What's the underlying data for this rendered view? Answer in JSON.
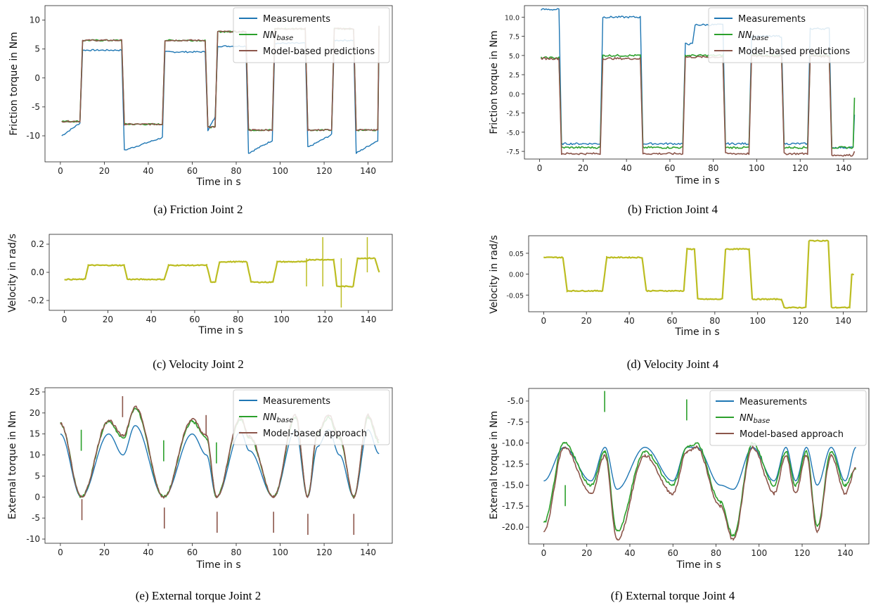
{
  "colors": {
    "measurements": "#1f77b4",
    "nn_base": "#2ca02c",
    "model": "#8c564b",
    "velocity": "#bcbd22"
  },
  "chart_data": [
    {
      "id": "a",
      "type": "line",
      "caption": "(a) Friction Joint 2",
      "xlabel": "Time in s",
      "ylabel": "Friction torque in Nm",
      "xlim": [
        -7,
        151
      ],
      "ylim": [
        -14.5,
        12.5
      ],
      "xticks": [
        "0",
        "20",
        "40",
        "60",
        "80",
        "100",
        "120",
        "140"
      ],
      "yticks": [
        "10",
        "5",
        "0",
        "-5",
        "-10"
      ],
      "legend": {
        "position": "top-right",
        "entries": [
          "Measurements",
          "NNbase",
          "Model-based predictions"
        ]
      },
      "x_breaks": [
        0,
        9.5,
        28.5,
        47,
        66.5,
        71,
        85,
        97,
        112,
        124,
        134,
        145
      ],
      "series": [
        {
          "name": "Measurements",
          "color": "#1f77b4",
          "values": [
            -10,
            4.8,
            -12.5,
            4.5,
            -9,
            5.5,
            -13,
            6,
            -12,
            6.5,
            -13,
            6.5
          ]
        },
        {
          "name": "NNbase",
          "color": "#2ca02c",
          "values": [
            -7.5,
            6.5,
            -8,
            6.5,
            -8.5,
            8,
            -9,
            8.5,
            -9,
            8.5,
            -9,
            9
          ]
        },
        {
          "name": "Model-based predictions",
          "color": "#8c564b",
          "values": [
            -7.5,
            6.5,
            -8,
            6.5,
            -8.5,
            8,
            -9,
            8.5,
            -9,
            8.5,
            -9,
            9
          ]
        }
      ]
    },
    {
      "id": "b",
      "type": "line",
      "caption": "(b) Friction Joint 4",
      "xlabel": "Time in s",
      "ylabel": "Friction torque in Nm",
      "xlim": [
        -7,
        151
      ],
      "ylim": [
        -8.5,
        11.5
      ],
      "xticks": [
        "0",
        "20",
        "40",
        "60",
        "80",
        "100",
        "120",
        "140"
      ],
      "yticks": [
        "10.0",
        "7.5",
        "5.0",
        "2.5",
        "0.0",
        "-2.5",
        "-5.0",
        "-7.5"
      ],
      "legend": {
        "position": "top-right",
        "entries": [
          "Measurements",
          "NNbase",
          "Model-based predictions"
        ]
      },
      "x_breaks": [
        0,
        9.5,
        28.5,
        47,
        66.5,
        71,
        85,
        97,
        112,
        124,
        134,
        145
      ],
      "series": [
        {
          "name": "Measurements",
          "color": "#1f77b4",
          "values": [
            11,
            -6.5,
            10,
            -6.5,
            6.5,
            9,
            -6.5,
            7.5,
            -6.5,
            8.5,
            -7,
            -2.7
          ]
        },
        {
          "name": "NNbase",
          "color": "#2ca02c",
          "values": [
            4.7,
            -7,
            5,
            -7,
            5,
            5,
            -7,
            5,
            -7,
            5,
            -7,
            -0.5
          ]
        },
        {
          "name": "Model-based predictions",
          "color": "#8c564b",
          "values": [
            4.6,
            -7.8,
            4.6,
            -7.8,
            4.8,
            4.8,
            -7.8,
            4.9,
            -7.8,
            4.9,
            -8,
            -7.5
          ]
        }
      ]
    },
    {
      "id": "c",
      "type": "line",
      "caption": "(c) Velocity Joint 2",
      "xlabel": "Time in s",
      "ylabel": "Velocity in rad/s",
      "xlim": [
        -7,
        151
      ],
      "ylim": [
        -0.27,
        0.27
      ],
      "xticks": [
        "0",
        "20",
        "40",
        "60",
        "80",
        "100",
        "120",
        "140"
      ],
      "yticks": [
        "0.2",
        "0.0",
        "-0.2"
      ],
      "segments": [
        [
          0,
          -0.05
        ],
        [
          9.5,
          -0.05
        ],
        [
          11,
          0.05
        ],
        [
          27.5,
          0.05
        ],
        [
          29,
          -0.05
        ],
        [
          46,
          -0.05
        ],
        [
          48,
          0.05
        ],
        [
          65.5,
          0.05
        ],
        [
          67.5,
          -0.07
        ],
        [
          69.5,
          -0.07
        ],
        [
          71.5,
          0.075
        ],
        [
          84,
          0.075
        ],
        [
          86,
          -0.07
        ],
        [
          96,
          -0.07
        ],
        [
          98,
          0.075
        ],
        [
          111,
          0.075
        ],
        [
          112.5,
          0.09
        ],
        [
          124,
          0.09
        ],
        [
          125.5,
          -0.1
        ],
        [
          133,
          -0.1
        ],
        [
          135,
          0.1
        ],
        [
          143,
          0.1
        ],
        [
          145,
          0
        ]
      ],
      "series": [
        {
          "name": "",
          "color": "#bcbd22"
        }
      ]
    },
    {
      "id": "d",
      "type": "line",
      "caption": "(d) Velocity Joint 4",
      "xlabel": "Time in s",
      "ylabel": "Velocity in rad/s",
      "xlim": [
        -7,
        151
      ],
      "ylim": [
        -0.09,
        0.092
      ],
      "xticks": [
        "0",
        "20",
        "40",
        "60",
        "80",
        "100",
        "120",
        "140"
      ],
      "yticks": [
        "0.05",
        "0.00",
        "-0.05"
      ],
      "segments": [
        [
          0,
          0.04
        ],
        [
          9,
          0.04
        ],
        [
          11,
          -0.04
        ],
        [
          27.5,
          -0.04
        ],
        [
          29.5,
          0.04
        ],
        [
          46,
          0.04
        ],
        [
          48,
          -0.04
        ],
        [
          65.5,
          -0.04
        ],
        [
          67,
          0.06
        ],
        [
          70.5,
          0.06
        ],
        [
          72,
          -0.06
        ],
        [
          83.5,
          -0.06
        ],
        [
          85,
          0.06
        ],
        [
          96,
          0.06
        ],
        [
          97.5,
          -0.06
        ],
        [
          111,
          -0.06
        ],
        [
          112.5,
          -0.08
        ],
        [
          122.5,
          -0.08
        ],
        [
          124,
          0.08
        ],
        [
          133,
          0.08
        ],
        [
          134.5,
          -0.08
        ],
        [
          143,
          -0.08
        ],
        [
          144,
          0
        ],
        [
          145,
          0
        ]
      ],
      "series": [
        {
          "name": "",
          "color": "#bcbd22"
        }
      ]
    },
    {
      "id": "e",
      "type": "line",
      "caption": "(e) External torque Joint 2",
      "xlabel": "Time in s",
      "ylabel": "External torque in Nm",
      "xlim": [
        -7,
        151
      ],
      "ylim": [
        -11,
        26
      ],
      "xticks": [
        "0",
        "20",
        "40",
        "60",
        "80",
        "100",
        "120",
        "140"
      ],
      "yticks": [
        "25",
        "20",
        "15",
        "10",
        "5",
        "0",
        "-5",
        "-10"
      ],
      "legend": {
        "position": "top-right",
        "entries": [
          "Measurements",
          "NNbase",
          "Model-based approach"
        ]
      },
      "x_knots": [
        0,
        9.5,
        22,
        28.5,
        34,
        47,
        60,
        66.5,
        71,
        82,
        86,
        97,
        107,
        112.5,
        117,
        122,
        127,
        133.5,
        140,
        145
      ],
      "series": [
        {
          "name": "Measurements",
          "color": "#1f77b4",
          "values": [
            15,
            0,
            15,
            10,
            17,
            0,
            15,
            10,
            0,
            15.5,
            11,
            0,
            16,
            0,
            12,
            16,
            10,
            0,
            16,
            10.3
          ]
        },
        {
          "name": "NNbase",
          "color": "#2ca02c",
          "values": [
            17.5,
            0,
            18,
            14,
            21,
            0,
            18,
            14,
            0,
            18.5,
            14,
            0,
            19,
            0,
            15,
            19,
            14,
            0,
            19,
            13
          ]
        },
        {
          "name": "Model-based approach",
          "color": "#8c564b",
          "values": [
            17.5,
            0,
            18.3,
            14.5,
            21.5,
            0,
            18.5,
            14.5,
            0,
            19,
            14.5,
            0,
            19.5,
            0,
            15.5,
            19.5,
            14.5,
            0,
            19.5,
            13.5
          ]
        }
      ],
      "spikes": [
        {
          "x": 9.5,
          "y": 11,
          "color": "#2ca02c"
        },
        {
          "x": 9.8,
          "y": -5.5,
          "color": "#8c564b"
        },
        {
          "x": 28.3,
          "y": 24,
          "color": "#8c564b"
        },
        {
          "x": 47,
          "y": 8.5,
          "color": "#2ca02c"
        },
        {
          "x": 47.3,
          "y": -7.5,
          "color": "#8c564b"
        },
        {
          "x": 66.3,
          "y": 19.5,
          "color": "#8c564b"
        },
        {
          "x": 71,
          "y": 8,
          "color": "#2ca02c"
        },
        {
          "x": 71.3,
          "y": -8.5,
          "color": "#8c564b"
        },
        {
          "x": 97,
          "y": -8.5,
          "color": "#8c564b"
        },
        {
          "x": 112.6,
          "y": -9,
          "color": "#8c564b"
        },
        {
          "x": 133.5,
          "y": -9,
          "color": "#8c564b"
        }
      ]
    },
    {
      "id": "f",
      "type": "line",
      "caption": "(f) External torque Joint 4",
      "xlabel": "Time in s",
      "ylabel": "External torque in Nm",
      "xlim": [
        -7,
        151
      ],
      "ylim": [
        -22,
        -3.5
      ],
      "xticks": [
        "0",
        "20",
        "40",
        "60",
        "80",
        "100",
        "120",
        "140"
      ],
      "yticks": [
        "-5.0",
        "-7.5",
        "-10.0",
        "-12.5",
        "-15.0",
        "-17.5",
        "-20.0"
      ],
      "legend": {
        "position": "top-right",
        "entries": [
          "Measurements",
          "NNbase",
          "Model-based approach"
        ]
      },
      "x_knots": [
        0,
        9.5,
        22,
        28.5,
        34,
        47,
        60,
        66.5,
        71,
        82,
        88,
        97,
        107,
        112.5,
        117,
        122,
        127,
        133.5,
        140,
        145
      ],
      "series": [
        {
          "name": "Measurements",
          "color": "#1f77b4",
          "values": [
            -14.5,
            -10.5,
            -14.5,
            -10.5,
            -15.5,
            -10.5,
            -14.5,
            -10.5,
            -10.5,
            -15,
            -15.5,
            -10.5,
            -14.5,
            -10.5,
            -14.5,
            -10.5,
            -15,
            -10.5,
            -14.5,
            -10.5
          ]
        },
        {
          "name": "NNbase",
          "color": "#2ca02c",
          "values": [
            -19.5,
            -10,
            -15,
            -11,
            -20.5,
            -11,
            -15,
            -10.5,
            -10,
            -17,
            -21,
            -10,
            -15,
            -11,
            -15,
            -11,
            -20,
            -11,
            -15,
            -13
          ]
        },
        {
          "name": "Model-based approach",
          "color": "#8c564b",
          "values": [
            -20.5,
            -10.5,
            -16,
            -11.5,
            -21.5,
            -11.5,
            -16,
            -11,
            -10.5,
            -17.5,
            -21.5,
            -10.5,
            -16,
            -11.5,
            -16,
            -11.5,
            -20.5,
            -11.5,
            -16,
            -13
          ]
        }
      ],
      "spikes": [
        {
          "x": 28.3,
          "y": -3.8,
          "color": "#2ca02c"
        },
        {
          "x": 66.4,
          "y": -4.8,
          "color": "#2ca02c"
        },
        {
          "x": 10,
          "y": -15,
          "color": "#2ca02c"
        }
      ]
    }
  ]
}
